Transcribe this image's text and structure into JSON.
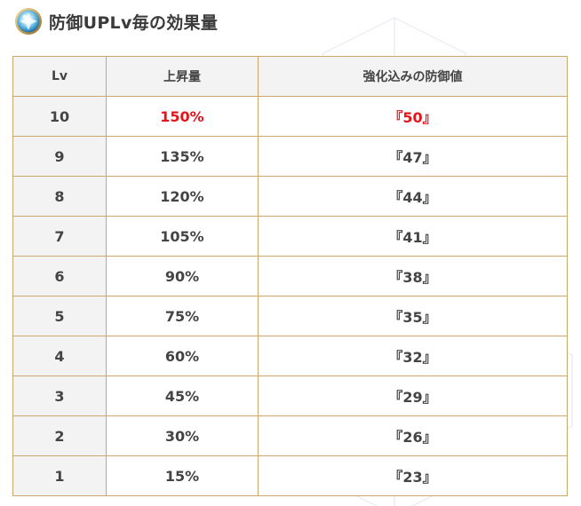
{
  "header": {
    "title": "防御UPLv毎の効果量",
    "icon": "crystal-orb-icon"
  },
  "table": {
    "columns": [
      "Lv",
      "上昇量",
      "強化込みの防御値"
    ],
    "rows": [
      {
        "lv": "10",
        "increase": "150%",
        "defense": "『50』",
        "highlight": true
      },
      {
        "lv": "9",
        "increase": "135%",
        "defense": "『47』",
        "highlight": false
      },
      {
        "lv": "8",
        "increase": "120%",
        "defense": "『44』",
        "highlight": false
      },
      {
        "lv": "7",
        "increase": "105%",
        "defense": "『41』",
        "highlight": false
      },
      {
        "lv": "6",
        "increase": "90%",
        "defense": "『38』",
        "highlight": false
      },
      {
        "lv": "5",
        "increase": "75%",
        "defense": "『35』",
        "highlight": false
      },
      {
        "lv": "4",
        "increase": "60%",
        "defense": "『32』",
        "highlight": false
      },
      {
        "lv": "3",
        "increase": "45%",
        "defense": "『29』",
        "highlight": false
      },
      {
        "lv": "2",
        "increase": "30%",
        "defense": "『26』",
        "highlight": false
      },
      {
        "lv": "1",
        "increase": "15%",
        "defense": "『23』",
        "highlight": false
      }
    ]
  },
  "colors": {
    "border": "#c9a86a",
    "header_bg": "#f3f3f3",
    "highlight": "#e5141a",
    "text": "#444444"
  }
}
